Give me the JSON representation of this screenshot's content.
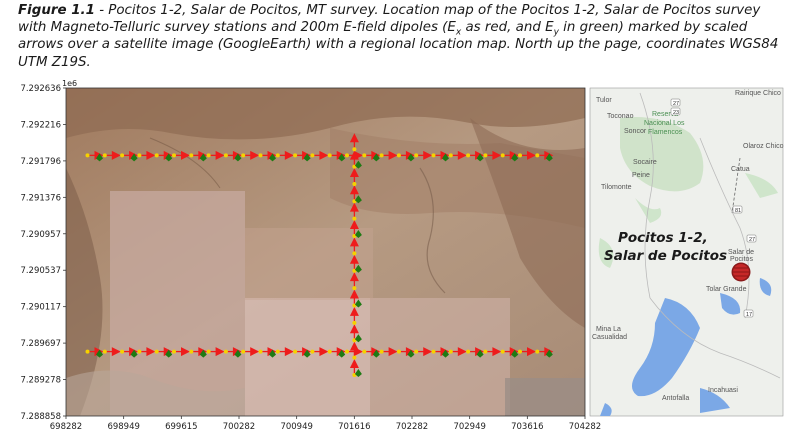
{
  "caption": {
    "fig": "Figure 1.1",
    "pre": " - Pocitos 1-2, Salar de Pocitos, MT survey. Location map of the Pocitos 1-2, Salar de Pocitos survey with Magneto-Telluric survey stations and 200m E-field dipoles (E",
    "mid": " as red, and E",
    "post": " in green) marked by scaled arrows over a satellite image (GoogleEarth) with a regional location map. North up the page, coordinates WGS84 UTM Z19S.",
    "sub_x": "x",
    "sub_y": "y"
  },
  "axes": {
    "y_exponent": "1e6",
    "x_ticks": [
      "698282",
      "698949",
      "699615",
      "700282",
      "700949",
      "701616",
      "702282",
      "702949",
      "703616",
      "704282"
    ],
    "y_ticks": [
      "7.292636",
      "7.292216",
      "7.291796",
      "7.291376",
      "7.290957",
      "7.290537",
      "7.290117",
      "7.289697",
      "7.289278",
      "7.288858"
    ],
    "x_range": [
      698282,
      704282
    ],
    "y_range": [
      7288858,
      7292636
    ]
  },
  "survey": {
    "north_line_y": 7291860,
    "south_line_y": 7289600,
    "ns_line_x": 701616,
    "station_x_start": 698600,
    "station_x_end": 703800,
    "station_spacing_m": 200,
    "ns_y_start": 7289400,
    "ns_y_end": 7292050,
    "ex_color": "#ee1c1c",
    "ey_color": "#1e7a14",
    "station_color": "#f5d200"
  },
  "inset": {
    "callout_line1": "Pocitos 1-2,",
    "callout_line2": "Salar de Pocitos",
    "places": {
      "tulor": "Tulor",
      "rairique": "Rairique Chico",
      "toconao": "Toconao",
      "reserva1": "Reserva",
      "reserva2": "Nacional Los",
      "reserva3": "Flamencos",
      "soncor": "Soncor",
      "olaroz": "Olaroz Chico",
      "socaire": "Socaire",
      "peine": "Peine",
      "tilomonte": "Tilomonte",
      "catua": "Catua",
      "salar1": "Salar de",
      "salar2": "Pocitos",
      "tolar": "Tolar Grande",
      "mina1": "Mina La",
      "mina2": "Casualidad",
      "antofalla": "Antofalla",
      "incahuasi": "Incahuasi"
    },
    "roads": {
      "r27": "27",
      "r23": "23",
      "r81": "81",
      "r27b": "27",
      "r17": "17"
    },
    "marker_color": "#c62828"
  }
}
